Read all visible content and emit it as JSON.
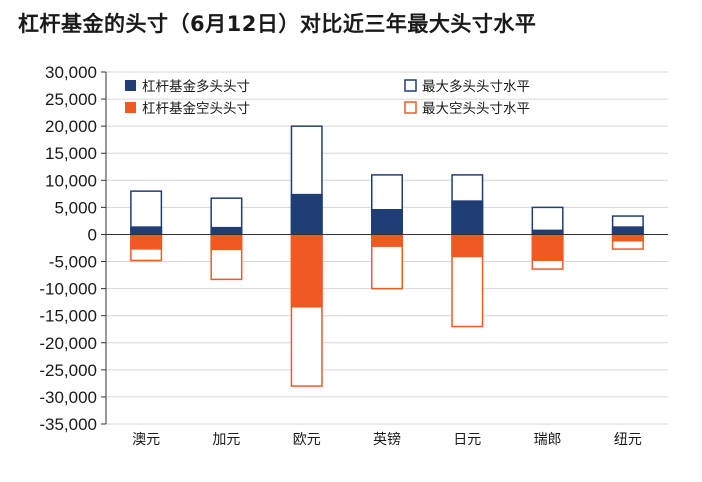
{
  "chart_data": {
    "type": "bar",
    "title": "杠杆基金的头寸（6月12日）对比近三年最大头寸水平",
    "xlabel": "",
    "ylabel": "",
    "categories": [
      "澳元",
      "加元",
      "欧元",
      "英镑",
      "日元",
      "瑞郎",
      "纽元"
    ],
    "ylim": [
      -35000,
      30000
    ],
    "yticks": [
      30000,
      25000,
      20000,
      15000,
      10000,
      5000,
      0,
      -5000,
      -10000,
      -15000,
      -20000,
      -25000,
      -30000,
      -35000
    ],
    "ytick_labels": [
      "30,000",
      "25,000",
      "20,000",
      "15,000",
      "10,000",
      "5,000",
      "0",
      "-5,000",
      "-10,000",
      "-15,000",
      "-20,000",
      "-25,000",
      "-30,000",
      "-35,000"
    ],
    "grid": true,
    "legend_position": "top",
    "series": [
      {
        "name": "杠杆基金多头头寸",
        "style": "filled",
        "color": "#1f3f74",
        "values": [
          1500,
          1400,
          7500,
          4700,
          6300,
          900,
          1500
        ]
      },
      {
        "name": "杠杆基金空头头寸",
        "style": "filled",
        "color": "#f05a22",
        "values": [
          -2800,
          -2900,
          -13500,
          -2300,
          -4200,
          -4900,
          -1300
        ]
      },
      {
        "name": "最大多头头寸水平",
        "style": "outline",
        "color": "#1f3f74",
        "values": [
          8000,
          6700,
          20000,
          11000,
          11000,
          5000,
          3400
        ]
      },
      {
        "name": "最大空头头寸水平",
        "style": "outline",
        "color": "#f05a22",
        "values": [
          -4800,
          -8300,
          -28000,
          -10000,
          -17000,
          -6400,
          -2700
        ]
      }
    ]
  }
}
